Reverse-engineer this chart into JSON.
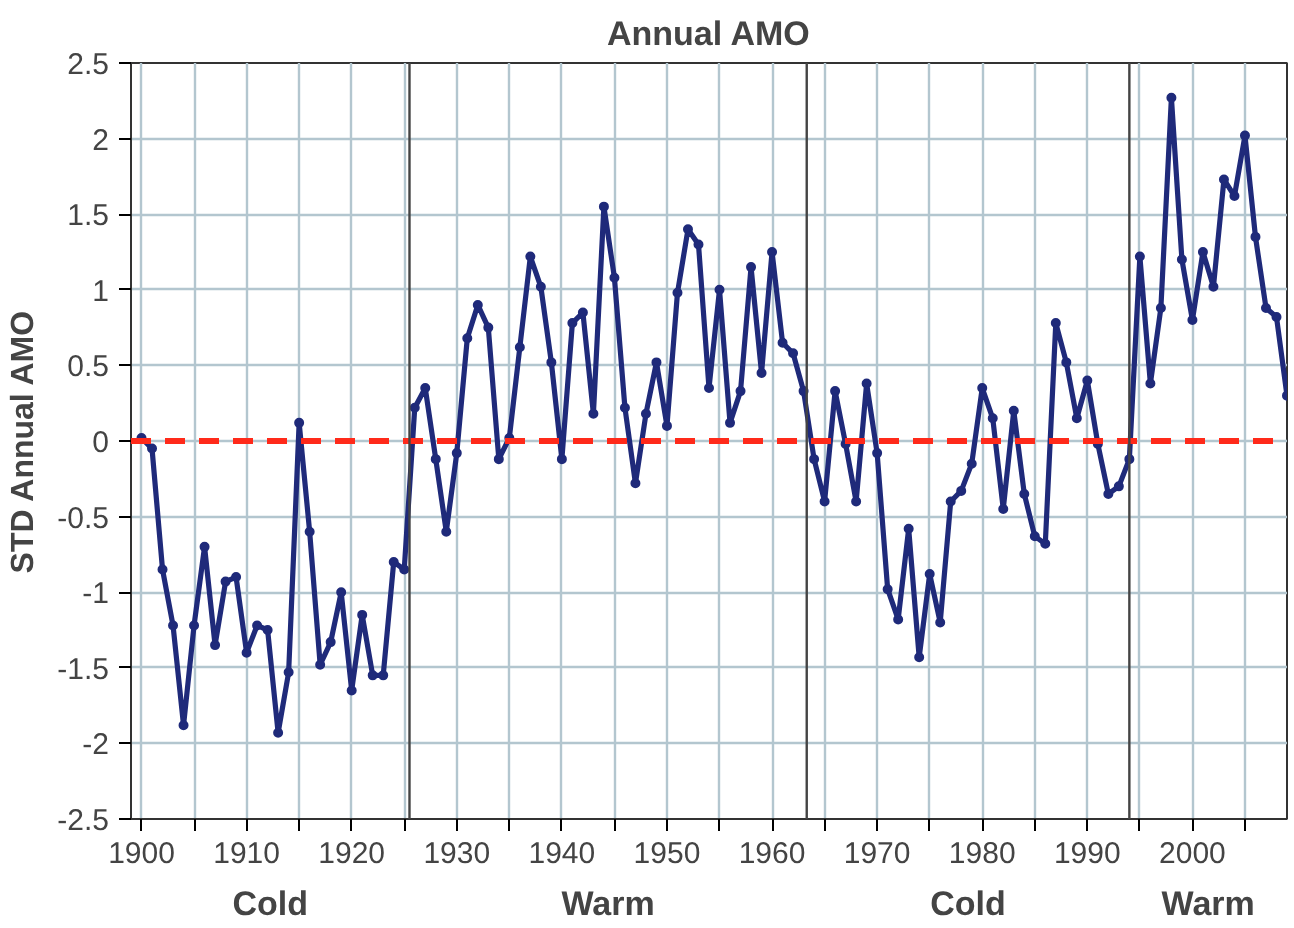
{
  "chart_data": {
    "type": "line",
    "title": "Annual AMO",
    "ylabel": "STD Annual AMO",
    "x": [
      1900,
      1901,
      1902,
      1903,
      1904,
      1905,
      1906,
      1907,
      1908,
      1909,
      1910,
      1911,
      1912,
      1913,
      1914,
      1915,
      1916,
      1917,
      1918,
      1919,
      1920,
      1921,
      1922,
      1923,
      1924,
      1925,
      1926,
      1927,
      1928,
      1929,
      1930,
      1931,
      1932,
      1933,
      1934,
      1935,
      1936,
      1937,
      1938,
      1939,
      1940,
      1941,
      1942,
      1943,
      1944,
      1945,
      1946,
      1947,
      1948,
      1949,
      1950,
      1951,
      1952,
      1953,
      1954,
      1955,
      1956,
      1957,
      1958,
      1959,
      1960,
      1961,
      1962,
      1963,
      1964,
      1965,
      1966,
      1967,
      1968,
      1969,
      1970,
      1971,
      1972,
      1973,
      1974,
      1975,
      1976,
      1977,
      1978,
      1979,
      1980,
      1981,
      1982,
      1983,
      1984,
      1985,
      1986,
      1987,
      1988,
      1989,
      1990,
      1991,
      1992,
      1993,
      1994,
      1995,
      1996,
      1997,
      1998,
      1999,
      2000,
      2001,
      2002,
      2003,
      2004,
      2005,
      2006,
      2007,
      2008,
      2009
    ],
    "series": [
      {
        "color": "#1f2a7a",
        "values": [
          0.02,
          -0.05,
          -0.85,
          -1.22,
          -1.88,
          -1.22,
          -0.7,
          -1.35,
          -0.93,
          -0.9,
          -1.4,
          -1.22,
          -1.25,
          -1.93,
          -1.53,
          0.12,
          -0.6,
          -1.48,
          -1.33,
          -1.0,
          -1.65,
          -1.15,
          -1.55,
          -1.55,
          -0.8,
          -0.85,
          0.22,
          0.35,
          -0.12,
          -0.6,
          -0.08,
          0.68,
          0.9,
          0.75,
          -0.12,
          0.02,
          0.62,
          1.22,
          1.02,
          0.52,
          -0.12,
          0.78,
          0.85,
          0.18,
          1.55,
          1.08,
          0.22,
          -0.28,
          0.18,
          0.52,
          0.1,
          0.98,
          1.4,
          1.3,
          0.35,
          1.0,
          0.12,
          0.33,
          1.15,
          0.45,
          1.25,
          0.65,
          0.58,
          0.33,
          -0.12,
          -0.4,
          0.33,
          -0.02,
          -0.4,
          0.38,
          -0.08,
          -0.98,
          -1.18,
          -0.58,
          -1.43,
          -0.88,
          -1.2,
          -0.4,
          -0.33,
          -0.15,
          0.35,
          0.15,
          -0.45,
          0.2,
          -0.35,
          -0.63,
          -0.68,
          0.78,
          0.52,
          0.15,
          0.4,
          -0.02,
          -0.35,
          -0.3,
          -0.12,
          1.22,
          0.38,
          0.88,
          2.27,
          1.2,
          0.8,
          1.25,
          1.02,
          1.73,
          1.62,
          2.02,
          1.35,
          0.88,
          0.82,
          0.3
        ]
      }
    ],
    "marker": "circle",
    "line_style": "solid",
    "grid": true,
    "xlim": [
      1899,
      2009
    ],
    "xticks": [
      1900,
      {
        "value": 1905,
        "label": null
      },
      1910,
      {
        "value": 1915,
        "label": null
      },
      1920,
      {
        "value": 1925,
        "label": null
      },
      1930,
      {
        "value": 1935,
        "label": null
      },
      1940,
      {
        "value": 1945,
        "label": null
      },
      1950,
      {
        "value": 1955,
        "label": null
      },
      1960,
      {
        "value": 1965,
        "label": null
      },
      1970,
      {
        "value": 1975,
        "label": null
      },
      1980,
      {
        "value": 1985,
        "label": null
      },
      1990,
      {
        "value": 1995,
        "label": null
      },
      2000,
      {
        "value": 2005,
        "label": null
      }
    ],
    "ylim": [
      -2.5,
      2.5
    ],
    "yticks": [
      -2.5,
      -2,
      -1.5,
      -1,
      -0.5,
      0,
      0.5,
      1,
      1.5,
      2,
      2.5
    ],
    "ref_lines": [
      {
        "axis": "y",
        "value": 0,
        "color": "#ff2a1a",
        "line_style": "dashed"
      },
      {
        "axis": "x",
        "value": 1925.5,
        "color": "#444444",
        "line_style": "solid"
      },
      {
        "axis": "x",
        "value": 1963.3,
        "color": "#444444",
        "line_style": "solid"
      },
      {
        "axis": "x",
        "value": 1994,
        "color": "#444444",
        "line_style": "solid"
      }
    ],
    "annotations": [
      "Cold",
      "Warm",
      "Cold",
      "Warm"
    ]
  }
}
